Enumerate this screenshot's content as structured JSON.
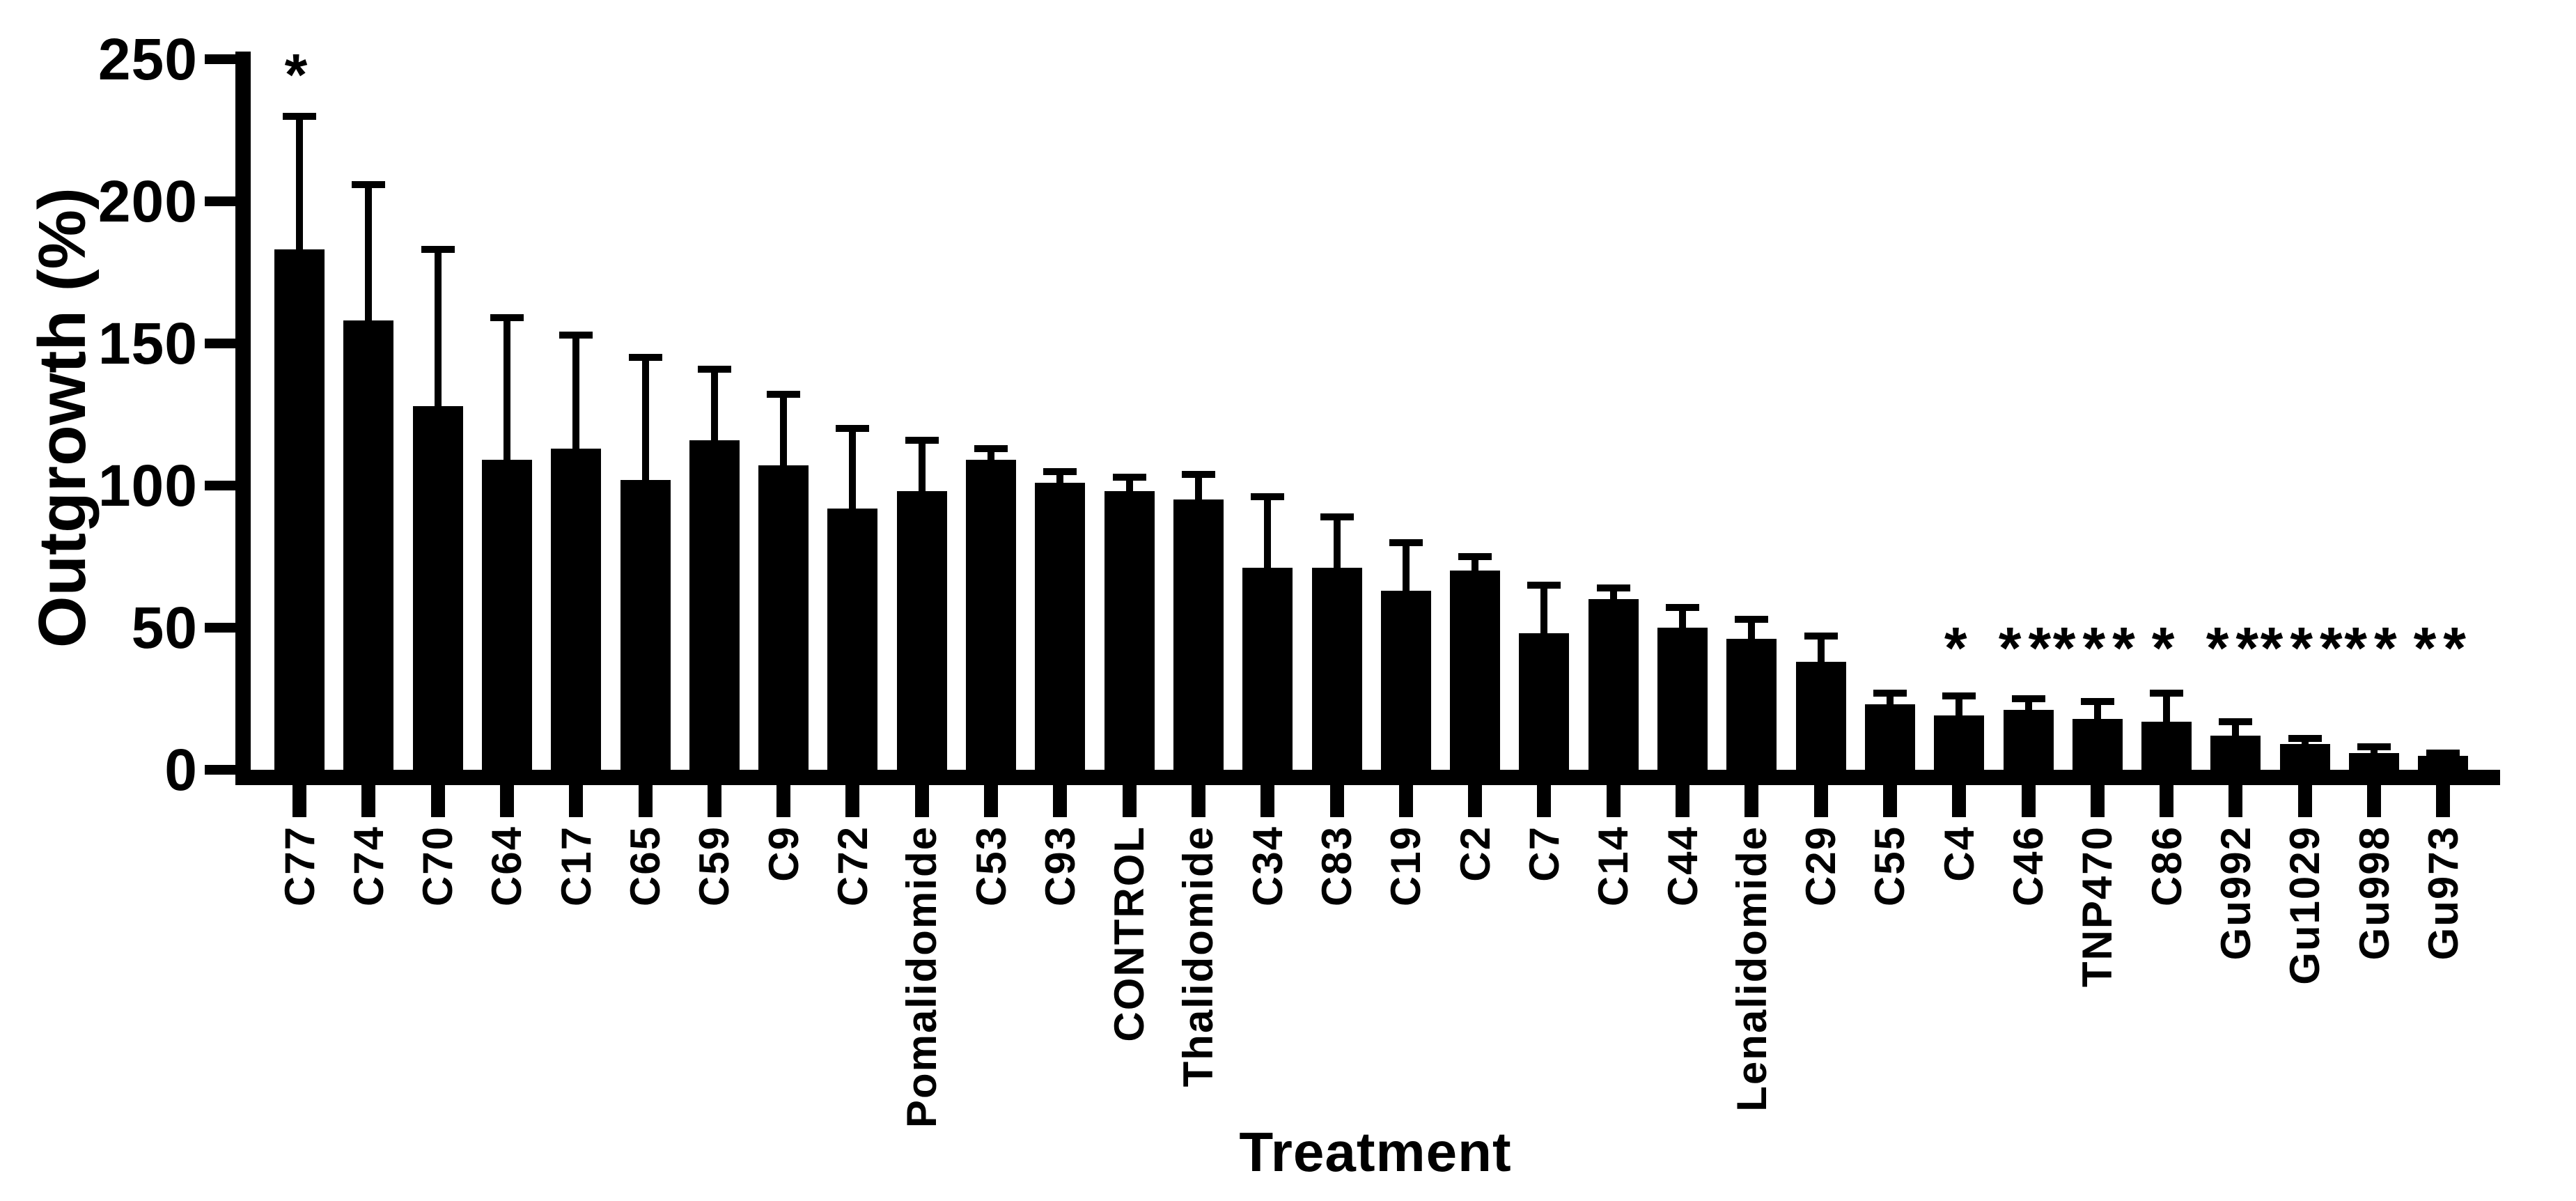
{
  "figure": {
    "background_color": "#ffffff",
    "bar_color": "#000000",
    "axis_color": "#000000",
    "text_color": "#000000"
  },
  "chart_data": {
    "type": "bar",
    "title": "",
    "xlabel": "Treatment",
    "ylabel": "Outgrowth (%)",
    "ylim": [
      0,
      250
    ],
    "y_ticks": [
      0,
      50,
      100,
      150,
      200,
      250
    ],
    "grid": false,
    "legend": "none",
    "error_bars": "upper standard-deviation bars with caps",
    "bar_style": "solid black, white background",
    "categories": [
      "C77",
      "C74",
      "C70",
      "C64",
      "C17",
      "C65",
      "C59",
      "C9",
      "C72",
      "Pomalidomide",
      "C53",
      "C93",
      "CONTROL",
      "Thalidomide",
      "C34",
      "C83",
      "C19",
      "C2",
      "C7",
      "C14",
      "C44",
      "Lenalidomide",
      "C29",
      "C55",
      "C4",
      "C46",
      "TNP470",
      "C86",
      "Gu992",
      "Gu1029",
      "Gu998",
      "Gu973"
    ],
    "values": [
      183,
      158,
      128,
      109,
      113,
      102,
      116,
      107,
      92,
      98,
      109,
      101,
      98,
      95,
      71,
      71,
      63,
      70,
      48,
      60,
      50,
      46,
      38,
      23,
      19,
      21,
      18,
      17,
      12,
      9,
      6,
      5
    ],
    "errors": [
      47,
      48,
      55,
      50,
      40,
      43,
      25,
      25,
      28,
      18,
      4,
      4,
      5,
      9,
      25,
      18,
      17,
      5,
      17,
      4,
      7,
      7,
      9,
      4,
      7,
      4,
      6,
      10,
      5,
      2,
      2,
      1
    ],
    "significance": [
      "*",
      "",
      "",
      "",
      "",
      "",
      "",
      "",
      "",
      "",
      "",
      "",
      "",
      "",
      "",
      "",
      "",
      "",
      "",
      "",
      "",
      "",
      "",
      "",
      "*",
      "**",
      "***",
      "*",
      "**",
      "***",
      "**",
      "**"
    ]
  }
}
